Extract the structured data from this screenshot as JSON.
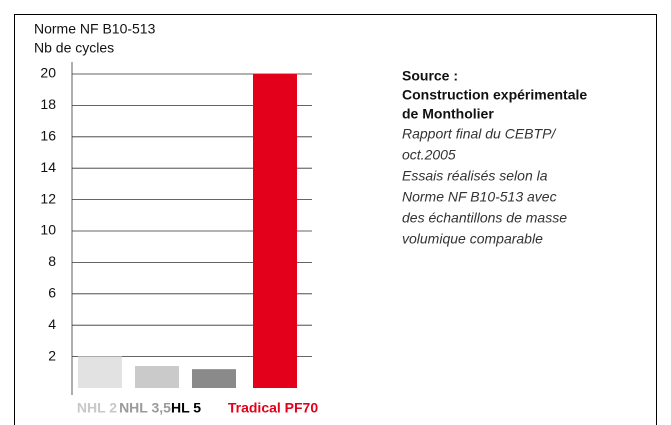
{
  "chart_data": {
    "type": "bar",
    "title": [
      "Norme NF B10-513",
      "Nb de cycles"
    ],
    "categories": [
      "NHL 2",
      "NHL 3,5",
      "HL 5",
      "Tradical PF70"
    ],
    "values": [
      2,
      1.4,
      1.2,
      20
    ],
    "colors": [
      "#e2e2e2",
      "#cacaca",
      "#8a8a8a",
      "#e3001b"
    ],
    "label_colors": [
      "#c8c8c8",
      "#9a9a9a",
      "#000000",
      "#e3001b"
    ],
    "ylim": [
      0,
      20
    ],
    "yticks": [
      2,
      4,
      6,
      8,
      10,
      12,
      14,
      16,
      18,
      20
    ],
    "grid": true,
    "annotation": {
      "heading": [
        "Source :",
        "Construction expérimentale",
        "de Montholier"
      ],
      "body": [
        "Rapport final du CEBTP/",
        "oct.2005",
        "Essais réalisés selon la",
        "Norme NF B10-513 avec",
        "des échantillons de masse",
        "volumique comparable"
      ]
    }
  }
}
